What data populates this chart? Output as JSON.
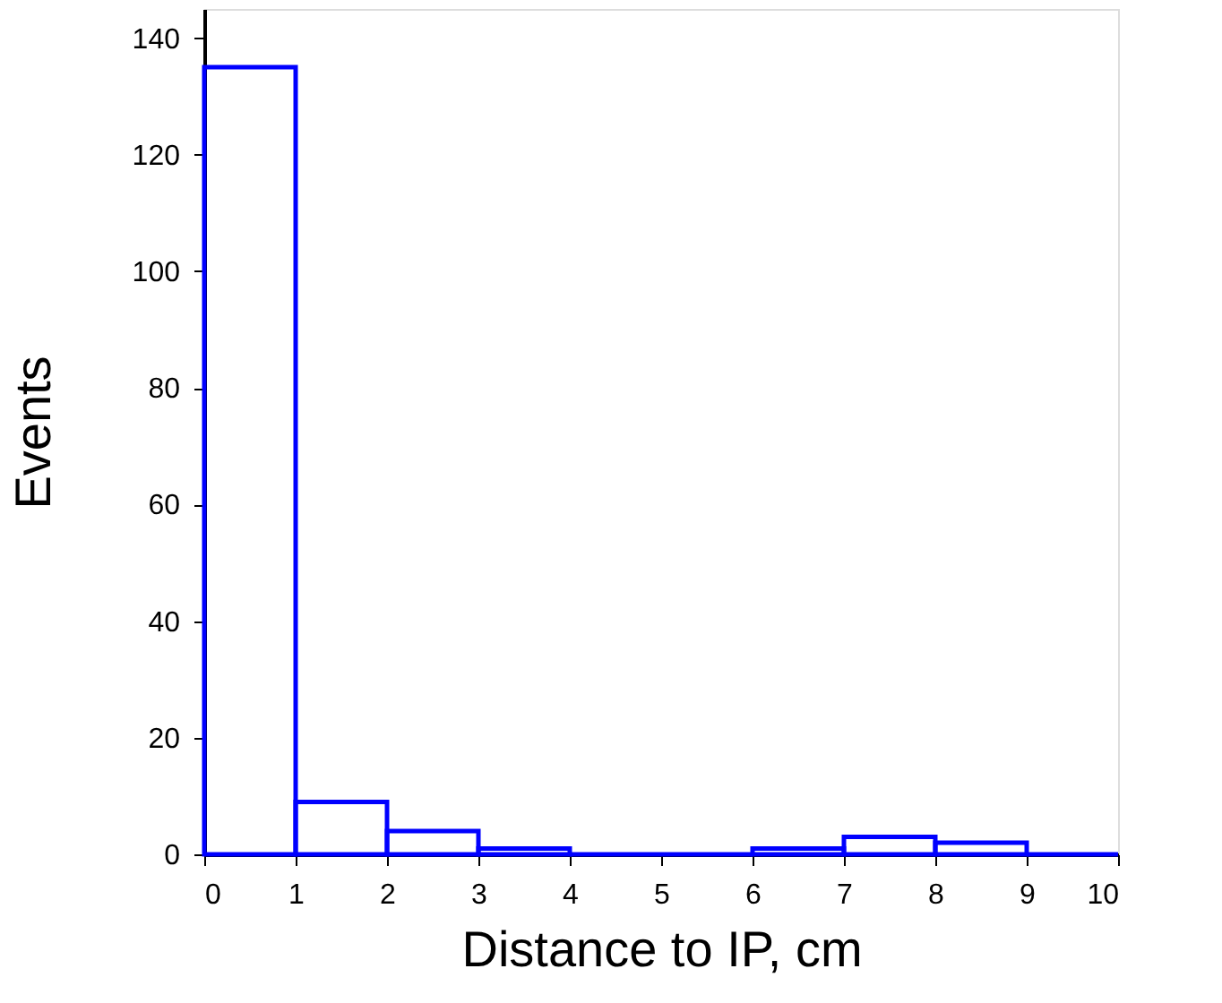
{
  "chart_data": {
    "type": "histogram",
    "xlabel": "Distance to IP, cm",
    "ylabel": "Events",
    "bins": [
      0,
      1,
      2,
      3,
      4,
      5,
      6,
      7,
      8,
      9,
      10
    ],
    "values": [
      135,
      9,
      4,
      1,
      0,
      0,
      1,
      3,
      2,
      0
    ],
    "color": "#0000ff",
    "xlim": [
      0,
      10
    ],
    "xticks": [
      0,
      1,
      2,
      3,
      4,
      5,
      6,
      7,
      8,
      9,
      10
    ],
    "ylim": [
      0,
      145
    ],
    "yticks": [
      0,
      20,
      40,
      60,
      80,
      100,
      120,
      140
    ],
    "grid": false
  }
}
